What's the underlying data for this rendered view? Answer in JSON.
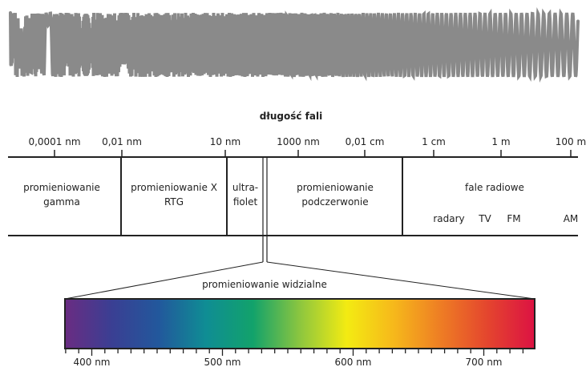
{
  "title": "długość fali",
  "wave_color": "#8a8a8a",
  "scale_ticks": [
    {
      "label": "0,0001 nm"
    },
    {
      "label": "0,01 nm"
    },
    {
      "label": "10 nm"
    },
    {
      "label": "1000 nm"
    },
    {
      "label": "0,01 cm"
    },
    {
      "label": "1 cm"
    },
    {
      "label": "1 m"
    },
    {
      "label": "100 m"
    }
  ],
  "bands": {
    "gamma": [
      "promieniowanie",
      "gamma"
    ],
    "xray": [
      "promieniowanie X",
      "RTG"
    ],
    "uv": [
      "ultra-",
      "fiolet"
    ],
    "ir": [
      "promieniowanie",
      "podczerwonie"
    ],
    "radio": "fale radiowe"
  },
  "radio_subbands": [
    "radary",
    "TV",
    "FM",
    "AM"
  ],
  "visible": {
    "title": "promieniowanie widzialne",
    "gradient_colors": [
      "#6a2c82",
      "#3a3f93",
      "#22589c",
      "#0f8d94",
      "#12a26b",
      "#8cc63f",
      "#f3eb12",
      "#f6b81b",
      "#ee7d24",
      "#e4452e",
      "#dc1243"
    ],
    "scale_labels": [
      "400 nm",
      "500 nm",
      "600 nm",
      "700 nm"
    ]
  }
}
